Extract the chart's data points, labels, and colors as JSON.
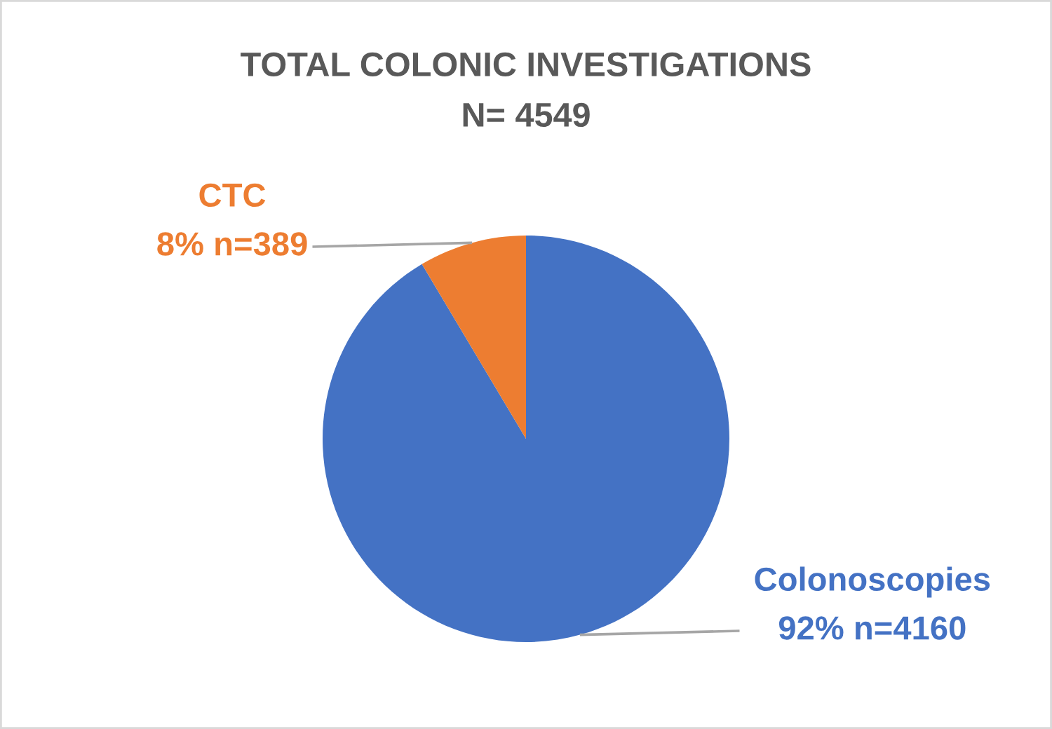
{
  "chart_data": {
    "type": "pie",
    "title": "TOTAL COLONIC INVESTIGATIONS",
    "subtitle": "N= 4549",
    "categories": [
      "Colonoscopies",
      "CTC"
    ],
    "values": [
      4160,
      389
    ],
    "colors": [
      "#4472c4",
      "#ed7d31"
    ],
    "value_labels": [
      "92% n=4160",
      "8% n=389"
    ]
  }
}
